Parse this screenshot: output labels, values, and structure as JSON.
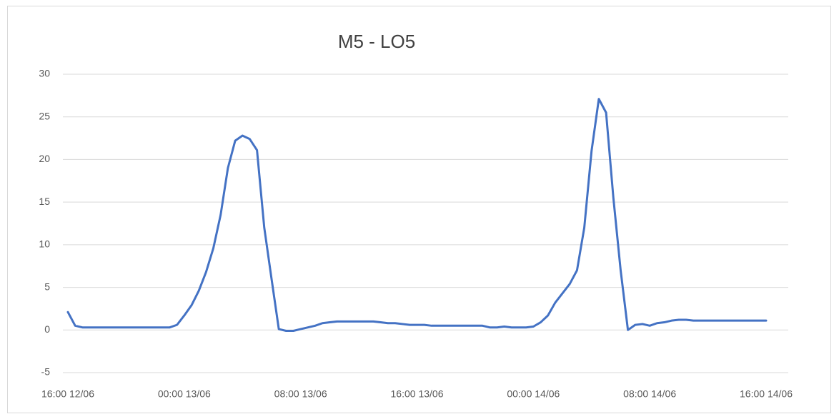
{
  "chart_data": {
    "type": "line",
    "title": "M5 - LO5",
    "categories": [
      "16:00 12/06",
      null,
      null,
      null,
      null,
      null,
      null,
      null,
      null,
      null,
      null,
      null,
      null,
      null,
      null,
      null,
      "00:00 13/06",
      null,
      null,
      null,
      null,
      null,
      null,
      null,
      null,
      null,
      null,
      null,
      null,
      null,
      null,
      null,
      "08:00 13/06",
      null,
      null,
      null,
      null,
      null,
      null,
      null,
      null,
      null,
      null,
      null,
      null,
      null,
      null,
      null,
      "16:00 13/06",
      null,
      null,
      null,
      null,
      null,
      null,
      null,
      null,
      null,
      null,
      null,
      null,
      null,
      null,
      null,
      "00:00 14/06",
      null,
      null,
      null,
      null,
      null,
      null,
      null,
      null,
      null,
      null,
      null,
      null,
      null,
      null,
      null,
      "08:00 14/06",
      null,
      null,
      null,
      null,
      null,
      null,
      null,
      null,
      null,
      null,
      null,
      null,
      null,
      null,
      null,
      "16:00 14/06"
    ],
    "series": [
      {
        "name": "M5 - LO5",
        "color": "#4472c4",
        "values": [
          2.1,
          0.5,
          0.3,
          0.3,
          0.3,
          0.3,
          0.3,
          0.3,
          0.3,
          0.3,
          0.3,
          0.3,
          0.3,
          0.3,
          0.3,
          0.6,
          1.7,
          2.9,
          4.6,
          6.8,
          9.6,
          13.5,
          19,
          22.2,
          22.8,
          22.4,
          21.1,
          12,
          6,
          0.1,
          -0.1,
          -0.1,
          0.1,
          0.3,
          0.5,
          0.8,
          0.9,
          1,
          1,
          1,
          1,
          1,
          1,
          0.9,
          0.8,
          0.8,
          0.7,
          0.6,
          0.6,
          0.6,
          0.5,
          0.5,
          0.5,
          0.5,
          0.5,
          0.5,
          0.5,
          0.5,
          0.3,
          0.3,
          0.4,
          0.3,
          0.3,
          0.3,
          0.4,
          0.9,
          1.7,
          3.2,
          4.3,
          5.4,
          7,
          12,
          21,
          27.1,
          25.5,
          15.5,
          7,
          0,
          0.6,
          0.7,
          0.5,
          0.8,
          0.9,
          1.1,
          1.2,
          1.2,
          1.1,
          1.1,
          1.1,
          1.1,
          1.1,
          1.1,
          1.1,
          1.1,
          1.1,
          1.1,
          1.1
        ]
      }
    ],
    "ylim": [
      -5,
      30
    ],
    "yticks": [
      -5,
      0,
      5,
      10,
      15,
      20,
      25,
      30
    ],
    "grid": true
  }
}
